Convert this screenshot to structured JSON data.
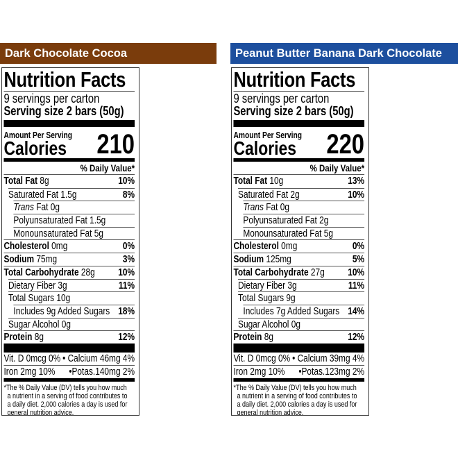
{
  "labels": [
    {
      "header": "Dark Chocolate Cocoa",
      "title": "Nutrition Facts",
      "servings": "9 servings per carton",
      "serving_size": "Serving size 2 bars (50g)",
      "amount_per_serving": "Amount Per Serving",
      "calories_label": "Calories",
      "calories": "210",
      "daily_value_header": "% Daily Value*",
      "rows": [
        {
          "name": "Total Fat",
          "amount": "8g",
          "dv": "10%",
          "bold": true,
          "indent": 0
        },
        {
          "name": "Saturated Fat",
          "amount": "1.5g",
          "dv": "8%",
          "indent": 1
        },
        {
          "name": "Trans",
          "suffix": "Fat",
          "amount": "0g",
          "dv": "",
          "indent": 2,
          "italic": true
        },
        {
          "name": "Polyunsaturated Fat",
          "amount": "1.5g",
          "dv": "",
          "indent": 2
        },
        {
          "name": "Monounsaturated Fat",
          "amount": "5g",
          "dv": "",
          "indent": 2
        },
        {
          "name": "Cholesterol",
          "amount": "0mg",
          "dv": "0%",
          "bold": true,
          "indent": 0
        },
        {
          "name": "Sodium",
          "amount": "75mg",
          "dv": "3%",
          "bold": true,
          "indent": 0
        },
        {
          "name": "Total Carbohydrate",
          "amount": "28g",
          "dv": "10%",
          "bold": true,
          "indent": 0
        },
        {
          "name": "Dietary Fiber",
          "amount": "3g",
          "dv": "11%",
          "indent": 1
        },
        {
          "name": "Total Sugars",
          "amount": "10g",
          "dv": "",
          "indent": 1
        },
        {
          "name": "Includes 9g Added Sugars",
          "amount": "",
          "dv": "18%",
          "indent": 2
        },
        {
          "name": "Sugar Alcohol",
          "amount": "0g",
          "dv": "",
          "indent": 1
        },
        {
          "name": "Protein",
          "amount": "8g",
          "dv": "12%",
          "bold": true,
          "indent": 0
        }
      ],
      "vitamins": [
        [
          "Vit. D 0mcg 0%",
          "• Calcium 46mg 4%"
        ],
        [
          "Iron 2mg 10%",
          "•Potas.140mg 2%"
        ]
      ],
      "footnote": [
        "*The % Daily Value (DV) tells you how much",
        "  a nutrient in a serving of food contributes to",
        "  a daily diet. 2,000 calories a day is used for",
        "  general nutrition advice."
      ]
    },
    {
      "header": "Peanut Butter Banana Dark Chocolate",
      "title": "Nutrition Facts",
      "servings": "9 servings per carton",
      "serving_size": "Serving size 2 bars (50g)",
      "amount_per_serving": "Amount Per Serving",
      "calories_label": "Calories",
      "calories": "220",
      "daily_value_header": "% Daily Value*",
      "rows": [
        {
          "name": "Total Fat",
          "amount": "10g",
          "dv": "13%",
          "bold": true,
          "indent": 0
        },
        {
          "name": "Saturated Fat",
          "amount": "2g",
          "dv": "10%",
          "indent": 1
        },
        {
          "name": "Trans",
          "suffix": "Fat",
          "amount": "0g",
          "dv": "",
          "indent": 2,
          "italic": true
        },
        {
          "name": "Polyunsaturated Fat",
          "amount": "2g",
          "dv": "",
          "indent": 2
        },
        {
          "name": "Monounsaturated Fat",
          "amount": "5g",
          "dv": "",
          "indent": 2
        },
        {
          "name": "Cholesterol",
          "amount": "0mg",
          "dv": "0%",
          "bold": true,
          "indent": 0
        },
        {
          "name": "Sodium",
          "amount": "125mg",
          "dv": "5%",
          "bold": true,
          "indent": 0
        },
        {
          "name": "Total Carbohydrate",
          "amount": "27g",
          "dv": "10%",
          "bold": true,
          "indent": 0
        },
        {
          "name": "Dietary Fiber",
          "amount": "3g",
          "dv": "11%",
          "indent": 1
        },
        {
          "name": "Total Sugars",
          "amount": "9g",
          "dv": "",
          "indent": 1
        },
        {
          "name": "Includes 7g Added Sugars",
          "amount": "",
          "dv": "14%",
          "indent": 2
        },
        {
          "name": "Sugar Alcohol",
          "amount": "0g",
          "dv": "",
          "indent": 1
        },
        {
          "name": "Protein",
          "amount": "8g",
          "dv": "12%",
          "bold": true,
          "indent": 0
        }
      ],
      "vitamins": [
        [
          "Vit. D 0mcg 0%",
          "• Calcium 39mg 4%"
        ],
        [
          "Iron 2mg 10%",
          "•Potas.123mg 2%"
        ]
      ],
      "footnote": [
        "*The % Daily Value (DV) tells you how much",
        "  a nutrient in a serving of food contributes to",
        "  a daily diet. 2,000 calories a day is used for",
        "  general nutrition advice."
      ]
    }
  ],
  "colors": {
    "dark_chocolate_header": "#7a3c0c",
    "peanut_butter_header": "#1d4f9e"
  }
}
